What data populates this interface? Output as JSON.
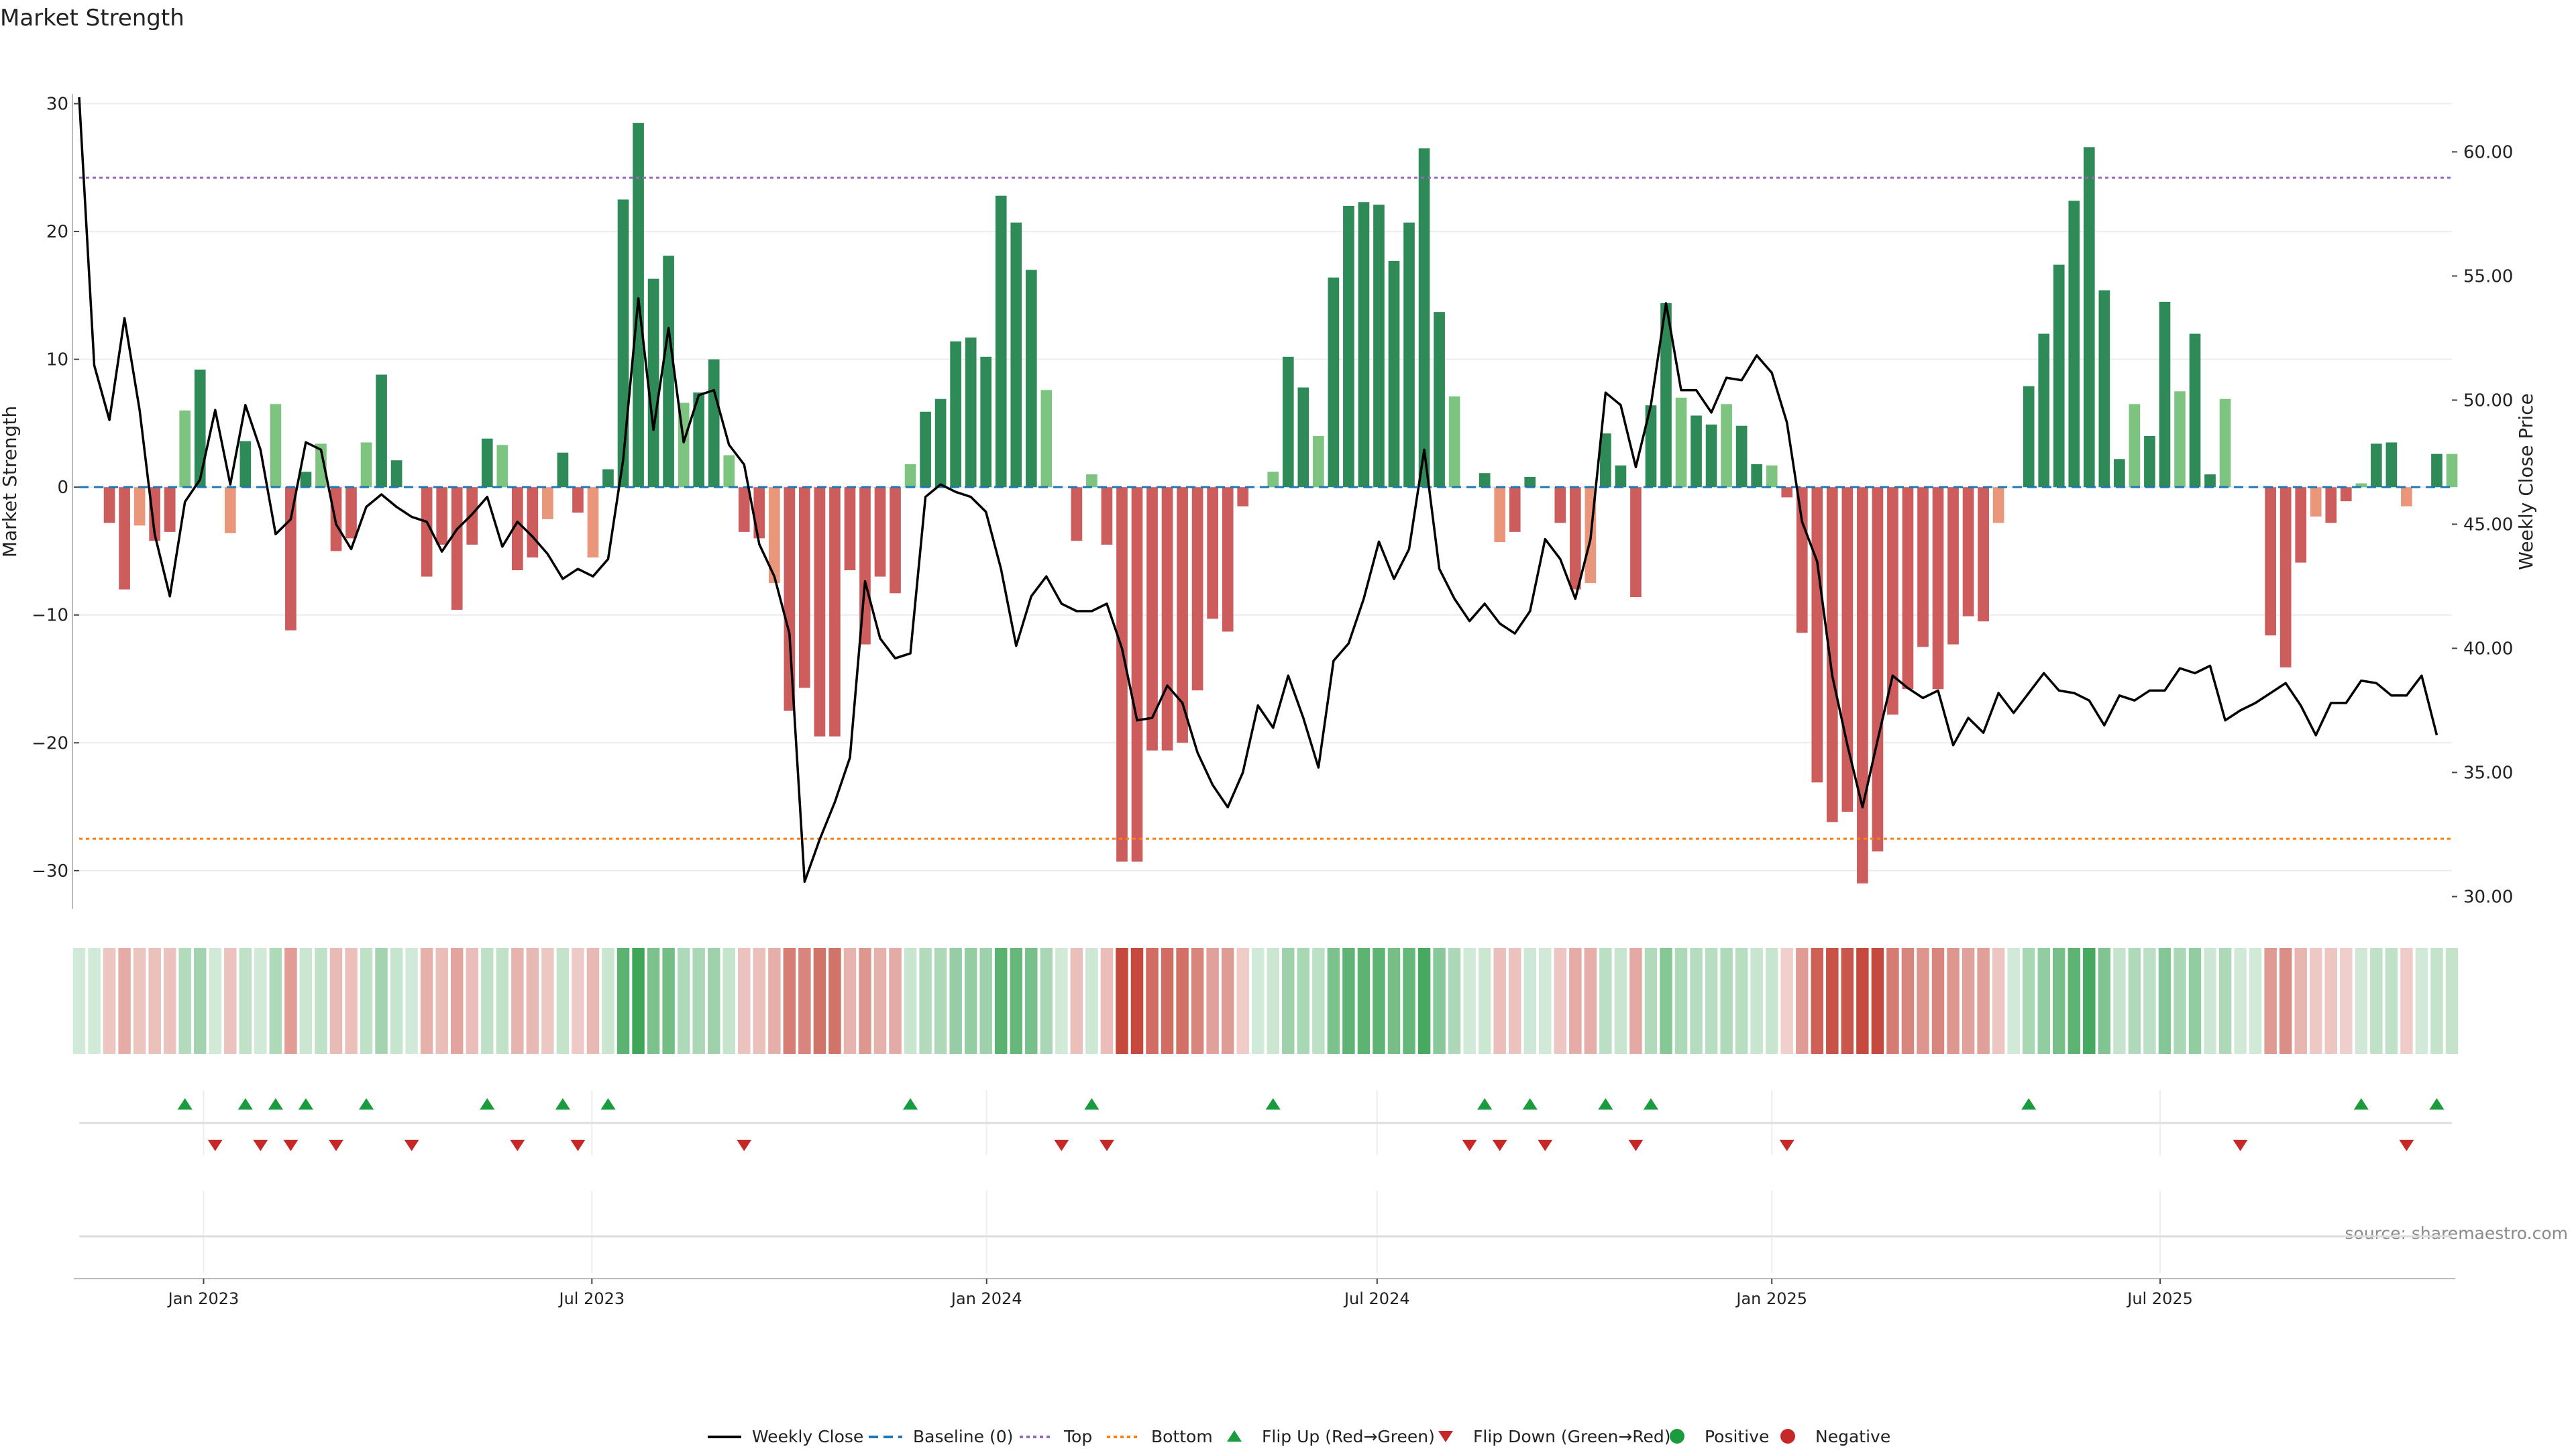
{
  "chart_data": {
    "type": "bar+line",
    "title": "Market Strength",
    "ylabel_left": "Market Strength",
    "ylabel_right": "Weekly Close Price",
    "source": "source: sharemaestro.com",
    "ylim_left": [
      -33,
      30.5
    ],
    "ylim_right": [
      29.5,
      62.2
    ],
    "yticks_left": [
      {
        "v": 30,
        "label": "30"
      },
      {
        "v": 20,
        "label": "20"
      },
      {
        "v": 10,
        "label": "10"
      },
      {
        "v": 0,
        "label": "0"
      },
      {
        "v": -10,
        "label": "−10"
      },
      {
        "v": -20,
        "label": "−20"
      },
      {
        "v": -30,
        "label": "−30"
      }
    ],
    "yticks_right": [
      {
        "v": 60,
        "label": "60.00"
      },
      {
        "v": 55,
        "label": "55.00"
      },
      {
        "v": 50,
        "label": "50.00"
      },
      {
        "v": 45,
        "label": "45.00"
      },
      {
        "v": 40,
        "label": "40.00"
      },
      {
        "v": 35,
        "label": "35.00"
      },
      {
        "v": 30,
        "label": "30.00"
      }
    ],
    "x_start_date": "2022-11-04",
    "x_end_date": "2025-11-14",
    "xticks": [
      {
        "date": "2023-01-01",
        "label": "Jan 2023"
      },
      {
        "date": "2023-07-01",
        "label": "Jul 2023"
      },
      {
        "date": "2024-01-01",
        "label": "Jan 2024"
      },
      {
        "date": "2024-07-01",
        "label": "Jul 2024"
      },
      {
        "date": "2025-01-01",
        "label": "Jan 2025"
      },
      {
        "date": "2025-07-01",
        "label": "Jul 2025"
      }
    ],
    "top_threshold": 24.2,
    "bottom_threshold": -27.5,
    "colors": {
      "pos_strong": "#2e8b57",
      "pos_weak": "#7cc47f",
      "neg_strong": "#cd5c5c",
      "neg_weak": "#e9967a",
      "line": "#000000",
      "baseline": "#1f77b4",
      "top": "#9467bd",
      "bottom": "#ff7f0e",
      "flip_up": "#1a9c3e",
      "flip_down": "#c62828",
      "heat_pos": "#2e9e4a",
      "heat_neg": "#c0392b"
    },
    "strength": [
      0,
      0,
      -2.8,
      -8,
      -3,
      -4.2,
      -3.5,
      6,
      9.2,
      0,
      -3.6,
      3.6,
      0,
      6.5,
      -11.2,
      1.2,
      3.4,
      -5,
      -4,
      3.5,
      8.8,
      2.1,
      0,
      -7,
      -4.5,
      -9.6,
      -4.5,
      3.8,
      3.3,
      -6.5,
      -5.5,
      -2.5,
      2.7,
      -2,
      -5.5,
      1.4,
      22.5,
      28.5,
      16.3,
      18.1,
      6.6,
      7.4,
      10,
      2.5,
      -3.5,
      -4,
      -7.5,
      -17.5,
      -15.7,
      -19.5,
      -19.5,
      -6.5,
      -12.3,
      -7,
      -8.3,
      1.8,
      5.9,
      6.9,
      11.4,
      11.7,
      10.2,
      22.8,
      20.7,
      17,
      7.6,
      0,
      -4.2,
      1,
      -4.5,
      -29.3,
      -29.3,
      -20.6,
      -20.6,
      -20,
      -15.9,
      -10.3,
      -11.3,
      -1.5,
      0,
      1.2,
      10.2,
      7.8,
      4,
      16.4,
      22,
      22.3,
      22.1,
      17.7,
      20.7,
      26.5,
      13.7,
      7.1,
      0,
      1.1,
      -4.3,
      -3.5,
      0.8,
      0,
      -2.8,
      -8,
      -7.5,
      4.2,
      1.7,
      -8.6,
      6.4,
      14.4,
      7,
      5.6,
      4.9,
      6.5,
      4.8,
      1.8,
      1.7,
      -0.8,
      -11.4,
      -23.1,
      -26.2,
      -25.4,
      -31,
      -28.5,
      -17.8,
      -15.8,
      -12.5,
      -15.8,
      -12.3,
      -10.1,
      -10.5,
      -2.8,
      0,
      7.9,
      12,
      17.4,
      22.4,
      26.6,
      15.4,
      2.2,
      6.5,
      4,
      14.5,
      7.5,
      12,
      1,
      6.9,
      0,
      0,
      -11.6,
      -14.1,
      -5.9,
      -2.3,
      -2.8,
      -1.1,
      0.3,
      3.4,
      3.5,
      -1.5,
      0,
      2.6,
      2.6
    ],
    "close": [
      62.2,
      51.4,
      49.2,
      53.3,
      49.6,
      44.6,
      42.1,
      45.9,
      46.8,
      49.6,
      46.6,
      49.8,
      48,
      44.6,
      45.2,
      48.3,
      48,
      45,
      44,
      45.7,
      46.2,
      45.7,
      45.3,
      45.1,
      43.9,
      44.8,
      45.4,
      46.1,
      44.1,
      45.1,
      44.5,
      43.8,
      42.8,
      43.2,
      42.9,
      43.6,
      47.6,
      54.1,
      48.8,
      52.9,
      48.3,
      50.2,
      50.4,
      48.2,
      47.4,
      44.2,
      42.9,
      40.6,
      30.6,
      32.3,
      33.8,
      35.6,
      42.7,
      40.4,
      39.6,
      39.8,
      46.1,
      46.6,
      46.3,
      46.1,
      45.5,
      43.2,
      40.1,
      42.1,
      42.9,
      41.8,
      41.5,
      41.5,
      41.8,
      40,
      37.1,
      37.2,
      38.5,
      37.8,
      35.8,
      34.5,
      33.6,
      35,
      37.7,
      36.8,
      38.9,
      37.2,
      35.2,
      39.5,
      40.2,
      42,
      44.3,
      42.8,
      44,
      48,
      43.2,
      42,
      41.1,
      41.8,
      41,
      40.6,
      41.5,
      44.4,
      43.6,
      42,
      44.4,
      50.3,
      49.8,
      47.3,
      49.8,
      53.9,
      50.4,
      50.4,
      49.5,
      50.9,
      50.8,
      51.8,
      51.1,
      49.1,
      45.1,
      43.5,
      38.9,
      36.1,
      33.6,
      36.3,
      38.9,
      38.4,
      38,
      38.3,
      36.1,
      37.2,
      36.6,
      38.2,
      37.4,
      38.2,
      39,
      38.3,
      38.2,
      37.9,
      36.9,
      38.1,
      37.9,
      38.3,
      38.3,
      39.2,
      39,
      39.3,
      37.1,
      37.5,
      37.8,
      38.2,
      38.6,
      37.7,
      36.5,
      37.8,
      37.8,
      38.7,
      38.6,
      38.1,
      38.1,
      38.9,
      36.5
    ]
  },
  "legend": {
    "items": [
      {
        "key": "line",
        "label": "Weekly Close"
      },
      {
        "key": "baseline",
        "label": "Baseline (0)"
      },
      {
        "key": "top",
        "label": "Top"
      },
      {
        "key": "bottom",
        "label": "Bottom"
      },
      {
        "key": "flip_up",
        "label": "Flip Up (Red→Green)"
      },
      {
        "key": "flip_down",
        "label": "Flip Down (Green→Red)"
      },
      {
        "key": "positive",
        "label": "Positive"
      },
      {
        "key": "negative",
        "label": "Negative"
      }
    ]
  }
}
